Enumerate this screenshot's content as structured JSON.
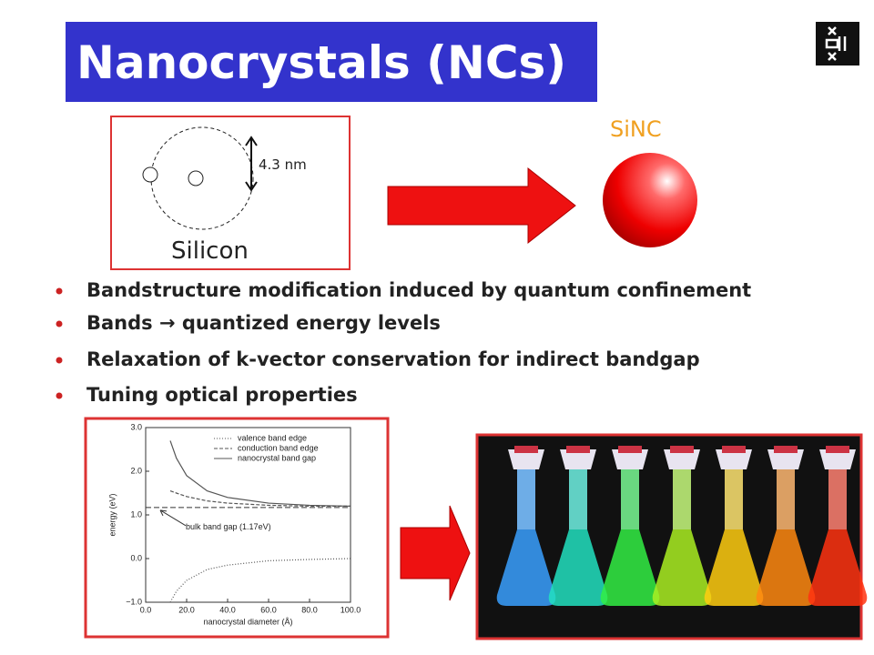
{
  "header": {
    "title": "Nanocrystals (NCs)"
  },
  "diagram": {
    "size_label": "4.3 nm",
    "material_label": "Silicon",
    "product_label": "SiNC"
  },
  "bullets": [
    "Bandstructure modification induced by quantum confinement",
    "Bands → quantized energy levels",
    "Relaxation of k-vector conservation for indirect bandgap",
    "Tuning optical properties"
  ],
  "chart_data": {
    "type": "line",
    "x_label": "nanocrystal diameter (Å)",
    "y_label": "energy (eV)",
    "x": [
      12,
      15,
      20,
      30,
      40,
      60,
      80,
      100
    ],
    "series": [
      {
        "name": "valence band edge",
        "color": "#555555",
        "dash": "1,2",
        "values": [
          -1.0,
          -0.75,
          -0.5,
          -0.25,
          -0.15,
          -0.05,
          -0.02,
          0.0
        ]
      },
      {
        "name": "conduction band edge",
        "color": "#555555",
        "dash": "4,2",
        "values": [
          1.55,
          1.5,
          1.42,
          1.32,
          1.27,
          1.22,
          1.2,
          1.2
        ]
      },
      {
        "name": "nanocrystal band gap",
        "color": "#555555",
        "dash": "none",
        "values": [
          2.7,
          2.3,
          1.9,
          1.55,
          1.4,
          1.27,
          1.22,
          1.2
        ]
      }
    ],
    "reference": {
      "value": 1.17,
      "label": "bulk band gap (1.17eV)"
    },
    "xlim": [
      0,
      100
    ],
    "xticks": [
      {
        "value": 0,
        "label": "0.0"
      },
      {
        "value": 20,
        "label": "20.0"
      },
      {
        "value": 40,
        "label": "40.0"
      },
      {
        "value": 60,
        "label": "60.0"
      },
      {
        "value": 80,
        "label": "80.0"
      },
      {
        "value": 100,
        "label": "100.0"
      }
    ],
    "ylim": [
      -1,
      3
    ],
    "yticks": [
      {
        "value": -1,
        "label": "−1.0"
      },
      {
        "value": 0,
        "label": "0.0"
      },
      {
        "value": 1,
        "label": "1.0"
      },
      {
        "value": 2,
        "label": "2.0"
      },
      {
        "value": 3,
        "label": "3.0"
      }
    ],
    "legend": "upper right"
  }
}
